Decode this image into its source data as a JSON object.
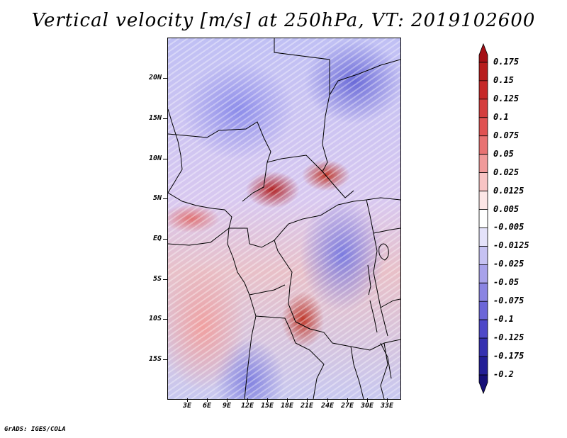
{
  "title": "Vertical velocity [m/s] at 250hPa, VT: 2019102600",
  "footer": "GrADS: IGES/COLA",
  "map": {
    "lat_ticks": [
      "20N",
      "15N",
      "10N",
      "5N",
      "EQ",
      "5S",
      "10S",
      "15S"
    ],
    "lon_ticks": [
      "3E",
      "6E",
      "9E",
      "12E",
      "15E",
      "18E",
      "21E",
      "24E",
      "27E",
      "30E",
      "33E"
    ]
  },
  "colorbar": {
    "levels": [
      "0.175",
      "0.15",
      "0.125",
      "0.1",
      "0.075",
      "0.05",
      "0.025",
      "0.0125",
      "0.005",
      "-0.005",
      "-0.0125",
      "-0.025",
      "-0.05",
      "-0.075",
      "-0.1",
      "-0.125",
      "-0.175",
      "-0.2"
    ],
    "colors": [
      "#a50f15",
      "#b71c1c",
      "#c62828",
      "#d43d3d",
      "#e05252",
      "#e87272",
      "#f09a9a",
      "#f8c4c4",
      "#fce6e6",
      "#ffffff",
      "#e4e2fa",
      "#c6c2f2",
      "#a8a2ea",
      "#8a84e2",
      "#6c66d8",
      "#4e48c8",
      "#3530b0",
      "#231e96",
      "#160f78"
    ]
  }
}
